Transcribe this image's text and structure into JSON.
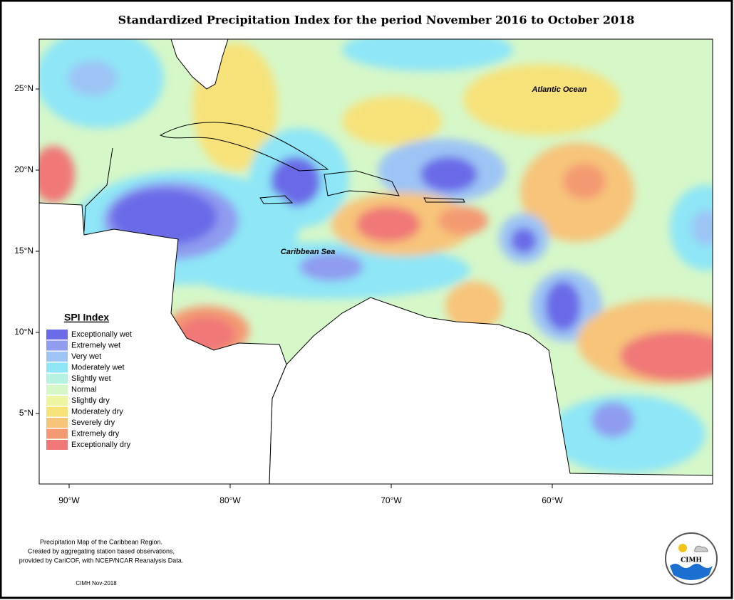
{
  "title": "Standardized Precipitation Index for the period November 2016 to October 2018",
  "lat_labels": [
    "25°N",
    "20°N",
    "15°N",
    "10°N",
    "5°N"
  ],
  "lon_labels": [
    "90°W",
    "80°W",
    "70°W",
    "60°W"
  ],
  "places": [
    "Atlantic Ocean",
    "Caribbean Sea"
  ],
  "legend": {
    "title": "SPI Index",
    "items": [
      {
        "label": "Exceptionally wet",
        "color": "#6b6be8"
      },
      {
        "label": "Extremely wet",
        "color": "#8f9cf0"
      },
      {
        "label": "Very wet",
        "color": "#9dc4f5"
      },
      {
        "label": "Moderately wet",
        "color": "#8ee6f7"
      },
      {
        "label": "Slightly wet",
        "color": "#b6f2e2"
      },
      {
        "label": "Normal",
        "color": "#d6f7c8"
      },
      {
        "label": "Slightly dry",
        "color": "#eef5a0"
      },
      {
        "label": "Moderately dry",
        "color": "#f7e27a"
      },
      {
        "label": "Severely dry",
        "color": "#f7c47a"
      },
      {
        "label": "Extremely dry",
        "color": "#f49a72"
      },
      {
        "label": "Exceptionally dry",
        "color": "#f07878"
      }
    ]
  },
  "footer": {
    "lines": [
      "Precipitation Map of the Caribbean Region.",
      "Created by aggregating station based observations,",
      "provided by CariCOF, with NCEP/NCAR Reanalysis Data."
    ],
    "date": "CIMH Nov-2018"
  },
  "logo": {
    "text": "CIMH"
  }
}
